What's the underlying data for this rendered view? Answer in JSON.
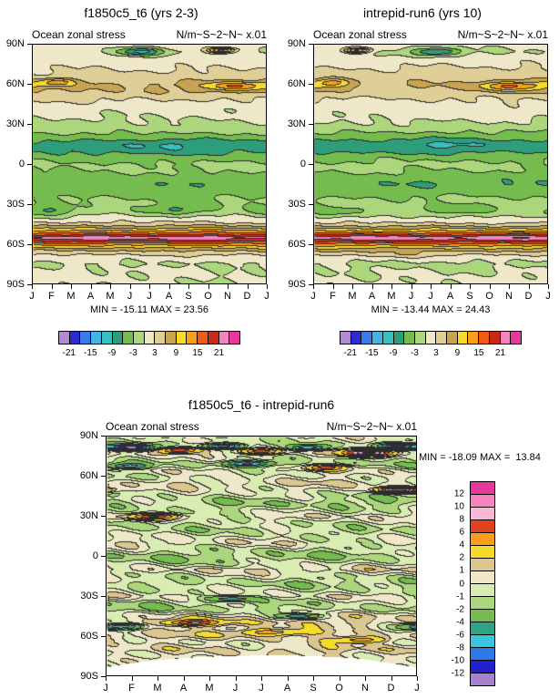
{
  "page": {
    "background": "#ffffff"
  },
  "chart_data": [
    {
      "type": "heatmap",
      "id": "panel-top-left",
      "title": "f1850c5_t6 (yrs 2-3)",
      "left_string": "Ocean zonal stress",
      "right_string": "N/m~S~2~N~ x.01",
      "stats": "MIN = -15.11 MAX = 23.56",
      "x_ticks": [
        "J",
        "F",
        "M",
        "A",
        "M",
        "J",
        "J",
        "A",
        "S",
        "O",
        "N",
        "D",
        "J"
      ],
      "y_ticks": [
        "90N",
        "60N",
        "30N",
        "0",
        "30S",
        "60S",
        "90S"
      ],
      "levels": [
        -21,
        -18,
        -15,
        -12,
        -9,
        -6,
        -3,
        0,
        3,
        6,
        9,
        12,
        15,
        18,
        21,
        24
      ],
      "colors": [
        "#B28BCF",
        "#2C2CD1",
        "#3A7BE8",
        "#45B4E3",
        "#38BFBF",
        "#2E9E7A",
        "#74BC4D",
        "#ABD67C",
        "#EFE8C8",
        "#DFCE96",
        "#C8A452",
        "#F7DB2B",
        "#FB9E1C",
        "#EF5A17",
        "#C62B1A",
        "#F584BE",
        "#E6399B"
      ],
      "colorbar_labels": [
        "-21",
        "-15",
        "-9",
        "-3",
        "3",
        "9",
        "15",
        "21"
      ],
      "colorbar_label_boundaries": [
        0,
        2,
        4,
        6,
        8,
        10,
        12,
        14
      ],
      "profile": [
        [
          90,
          1.2
        ],
        [
          85,
          0.3
        ],
        [
          80,
          1.5
        ],
        [
          75,
          2.5
        ],
        [
          70,
          3.5
        ],
        [
          65,
          4.5
        ],
        [
          60,
          6
        ],
        [
          55,
          5.5
        ],
        [
          50,
          3.5
        ],
        [
          45,
          2
        ],
        [
          40,
          1
        ],
        [
          35,
          0.3
        ],
        [
          30,
          -0.8
        ],
        [
          25,
          -2.5
        ],
        [
          20,
          -5
        ],
        [
          15,
          -7.5
        ],
        [
          10,
          -6.5
        ],
        [
          5,
          -4
        ],
        [
          0,
          -2.5
        ],
        [
          -5,
          -3
        ],
        [
          -10,
          -4.5
        ],
        [
          -15,
          -5.5
        ],
        [
          -20,
          -4.5
        ],
        [
          -25,
          -3
        ],
        [
          -30,
          -2
        ],
        [
          -35,
          -1
        ],
        [
          -40,
          0.8
        ],
        [
          -44,
          3
        ],
        [
          -47,
          7
        ],
        [
          -50,
          12
        ],
        [
          -53,
          17.5
        ],
        [
          -55,
          21.8
        ],
        [
          -57,
          20
        ],
        [
          -60,
          14
        ],
        [
          -63,
          9
        ],
        [
          -66,
          5
        ],
        [
          -70,
          1.5
        ],
        [
          -75,
          -0.5
        ],
        [
          -80,
          0.3
        ],
        [
          -85,
          0.5
        ],
        [
          -90,
          0.5
        ]
      ],
      "anomalies": [
        [
          85,
          5.5,
          -10,
          3,
          1.2
        ],
        [
          86,
          9.7,
          15,
          2,
          0.7
        ],
        [
          62,
          1.2,
          8,
          3,
          1.0
        ],
        [
          59,
          10.4,
          9,
          3.5,
          1.6
        ],
        [
          14,
          6.5,
          -2,
          5,
          2.6
        ],
        [
          -34,
          7.6,
          -5,
          4,
          2.0
        ],
        [
          -35,
          0.6,
          -5,
          4,
          1.6
        ],
        [
          -55,
          3.6,
          2,
          3,
          1.8
        ],
        [
          -55,
          9.2,
          2,
          3,
          2.0
        ],
        [
          -50,
          8.8,
          2,
          2.5,
          1.5
        ]
      ],
      "noise": [
        0.9,
        0.6,
        0
      ]
    },
    {
      "type": "heatmap",
      "id": "panel-top-right",
      "title": "intrepid-run6 (yrs 10)",
      "left_string": "Ocean zonal stress",
      "right_string": "N/m~S~2~N~ x.01",
      "stats": "MIN = -13.44 MAX = 24.43",
      "x_ticks": [
        "J",
        "F",
        "M",
        "A",
        "M",
        "J",
        "J",
        "A",
        "S",
        "O",
        "N",
        "D",
        "J"
      ],
      "y_ticks": [
        "90N",
        "60N",
        "30N",
        "0",
        "30S",
        "60S",
        "90S"
      ],
      "levels": [
        -21,
        -18,
        -15,
        -12,
        -9,
        -6,
        -3,
        0,
        3,
        6,
        9,
        12,
        15,
        18,
        21,
        24
      ],
      "colors": [
        "#B28BCF",
        "#2C2CD1",
        "#3A7BE8",
        "#45B4E3",
        "#38BFBF",
        "#2E9E7A",
        "#74BC4D",
        "#ABD67C",
        "#EFE8C8",
        "#DFCE96",
        "#C8A452",
        "#F7DB2B",
        "#FB9E1C",
        "#EF5A17",
        "#C62B1A",
        "#F584BE",
        "#E6399B"
      ],
      "colorbar_labels": [
        "-21",
        "-15",
        "-9",
        "-3",
        "3",
        "9",
        "15",
        "21"
      ],
      "colorbar_label_boundaries": [
        0,
        2,
        4,
        6,
        8,
        10,
        12,
        14
      ],
      "profile": [
        [
          90,
          1.2
        ],
        [
          85,
          0.3
        ],
        [
          80,
          1.5
        ],
        [
          75,
          2.5
        ],
        [
          70,
          3.5
        ],
        [
          65,
          4.5
        ],
        [
          60,
          6
        ],
        [
          55,
          5.5
        ],
        [
          50,
          3.5
        ],
        [
          45,
          2
        ],
        [
          40,
          1
        ],
        [
          35,
          0.3
        ],
        [
          30,
          -0.8
        ],
        [
          25,
          -2.5
        ],
        [
          20,
          -5
        ],
        [
          15,
          -7.5
        ],
        [
          10,
          -6.5
        ],
        [
          5,
          -4
        ],
        [
          0,
          -2.5
        ],
        [
          -5,
          -3
        ],
        [
          -10,
          -4.5
        ],
        [
          -15,
          -5.5
        ],
        [
          -20,
          -4.5
        ],
        [
          -25,
          -3
        ],
        [
          -30,
          -2
        ],
        [
          -35,
          -1
        ],
        [
          -40,
          0.8
        ],
        [
          -44,
          3
        ],
        [
          -47,
          7
        ],
        [
          -50,
          12
        ],
        [
          -53,
          17.5
        ],
        [
          -55,
          21.8
        ],
        [
          -57,
          20
        ],
        [
          -60,
          14
        ],
        [
          -63,
          9
        ],
        [
          -66,
          5
        ],
        [
          -70,
          1.5
        ],
        [
          -75,
          -0.5
        ],
        [
          -80,
          0.3
        ],
        [
          -85,
          0.5
        ],
        [
          -90,
          0.5
        ]
      ],
      "anomalies": [
        [
          86,
          2.2,
          15,
          2,
          0.7
        ],
        [
          85,
          6.3,
          -10,
          3,
          1.2
        ],
        [
          62,
          1.0,
          7,
          3,
          1.0
        ],
        [
          59,
          10.2,
          10,
          3.5,
          1.7
        ],
        [
          14,
          6.8,
          -2,
          5,
          2.6
        ],
        [
          -34,
          7.2,
          -5,
          4,
          2.0
        ],
        [
          -36,
          1.0,
          -4.5,
          4,
          1.6
        ],
        [
          -55,
          3.2,
          2.2,
          3,
          1.8
        ],
        [
          -55,
          9.6,
          2.2,
          3,
          2.0
        ],
        [
          -68,
          4.5,
          2,
          2.5,
          1.5
        ]
      ],
      "noise": [
        0.9,
        0.6,
        2.3
      ]
    },
    {
      "type": "heatmap",
      "id": "panel-difference",
      "title": "f1850c5_t6 - intrepid-run6",
      "left_string": "Ocean zonal stress",
      "right_string": "N/m~S~2~N~ x.01",
      "stats": "MIN = -18.09 MAX =  13.84",
      "x_ticks": [
        "J",
        "F",
        "M",
        "A",
        "M",
        "J",
        "J",
        "A",
        "S",
        "O",
        "N",
        "D",
        "J"
      ],
      "y_ticks": [
        "90N",
        "60N",
        "30N",
        "0",
        "30S",
        "60S",
        "90S"
      ],
      "levels": [
        -12,
        -10,
        -8,
        -6,
        -4,
        -2,
        -1,
        0,
        1,
        2,
        4,
        6,
        8,
        10,
        12
      ],
      "colors": [
        "#A583CF",
        "#2020CD",
        "#2E79E8",
        "#38C5DC",
        "#2FA484",
        "#74BC4D",
        "#ABD67C",
        "#D9ECB2",
        "#EFE8C8",
        "#DCC68F",
        "#F7DB2B",
        "#FB9E1C",
        "#E0421F",
        "#FBB8D4",
        "#F584C0",
        "#E6399B"
      ],
      "colorbar_labels": [
        "12",
        "10",
        "8",
        "6",
        "4",
        "2",
        "1",
        "0",
        "-1",
        "-2",
        "-4",
        "-6",
        "-8",
        "-10",
        "-12"
      ],
      "profile": [
        [
          90,
          -0.6
        ],
        [
          85,
          -1
        ],
        [
          80,
          0.3
        ],
        [
          75,
          -0.3
        ],
        [
          70,
          -0.8
        ],
        [
          65,
          0.4
        ],
        [
          60,
          -0.2
        ],
        [
          55,
          0.4
        ],
        [
          50,
          -0.4
        ],
        [
          45,
          -0.8
        ],
        [
          40,
          -1.3
        ],
        [
          35,
          -0.4
        ],
        [
          30,
          0.4
        ],
        [
          25,
          -0.8
        ],
        [
          20,
          -1.4
        ],
        [
          15,
          -0.6
        ],
        [
          10,
          0.4
        ],
        [
          5,
          -0.6
        ],
        [
          0,
          -1.4
        ],
        [
          -5,
          -0.8
        ],
        [
          -10,
          0.4
        ],
        [
          -15,
          -0.8
        ],
        [
          -20,
          -1.4
        ],
        [
          -25,
          -0.4
        ],
        [
          -30,
          0.6
        ],
        [
          -35,
          -0.8
        ],
        [
          -40,
          -1.2
        ],
        [
          -45,
          0.4
        ],
        [
          -50,
          1.2
        ],
        [
          -55,
          0.4
        ],
        [
          -60,
          1.4
        ],
        [
          -65,
          0.6
        ],
        [
          -70,
          1.2
        ],
        [
          -75,
          0.4
        ],
        [
          -80,
          0
        ],
        [
          -90,
          0
        ]
      ],
      "anomalies": [
        [
          82,
          1.0,
          -13,
          2.2,
          0.8
        ],
        [
          80,
          2.8,
          8,
          2,
          0.7
        ],
        [
          83,
          4.5,
          -9,
          2,
          0.8
        ],
        [
          79,
          6.0,
          7,
          2,
          0.8
        ],
        [
          82,
          7.8,
          -8,
          2,
          0.7
        ],
        [
          78,
          10.2,
          12,
          2.5,
          1.0
        ],
        [
          83,
          11.3,
          -10,
          2,
          0.8
        ],
        [
          68,
          0.8,
          -6,
          2,
          0.8
        ],
        [
          70,
          5.5,
          -7,
          2,
          0.9
        ],
        [
          67,
          8.5,
          6,
          2,
          0.8
        ],
        [
          30,
          1.8,
          7,
          2.2,
          0.9
        ],
        [
          50,
          11.3,
          13,
          2,
          0.8
        ],
        [
          -50,
          3.3,
          6.5,
          2.2,
          1.0
        ],
        [
          -53,
          0.5,
          -8,
          2.2,
          0.9
        ],
        [
          -57,
          6.5,
          5,
          2.5,
          1.4
        ],
        [
          -63,
          9.8,
          5,
          2.2,
          1.0
        ],
        [
          -45,
          7.5,
          -6,
          1.8,
          0.8
        ],
        [
          -32,
          4.8,
          -5,
          2,
          0.9
        ]
      ],
      "mask_by_month": [
        -84,
        -81,
        -78.5,
        -77,
        -76,
        -75.5,
        -75,
        -75,
        -75.5,
        -76.5,
        -78,
        -81,
        -84
      ],
      "noise": [
        1.2,
        0.8,
        4.1
      ]
    }
  ]
}
